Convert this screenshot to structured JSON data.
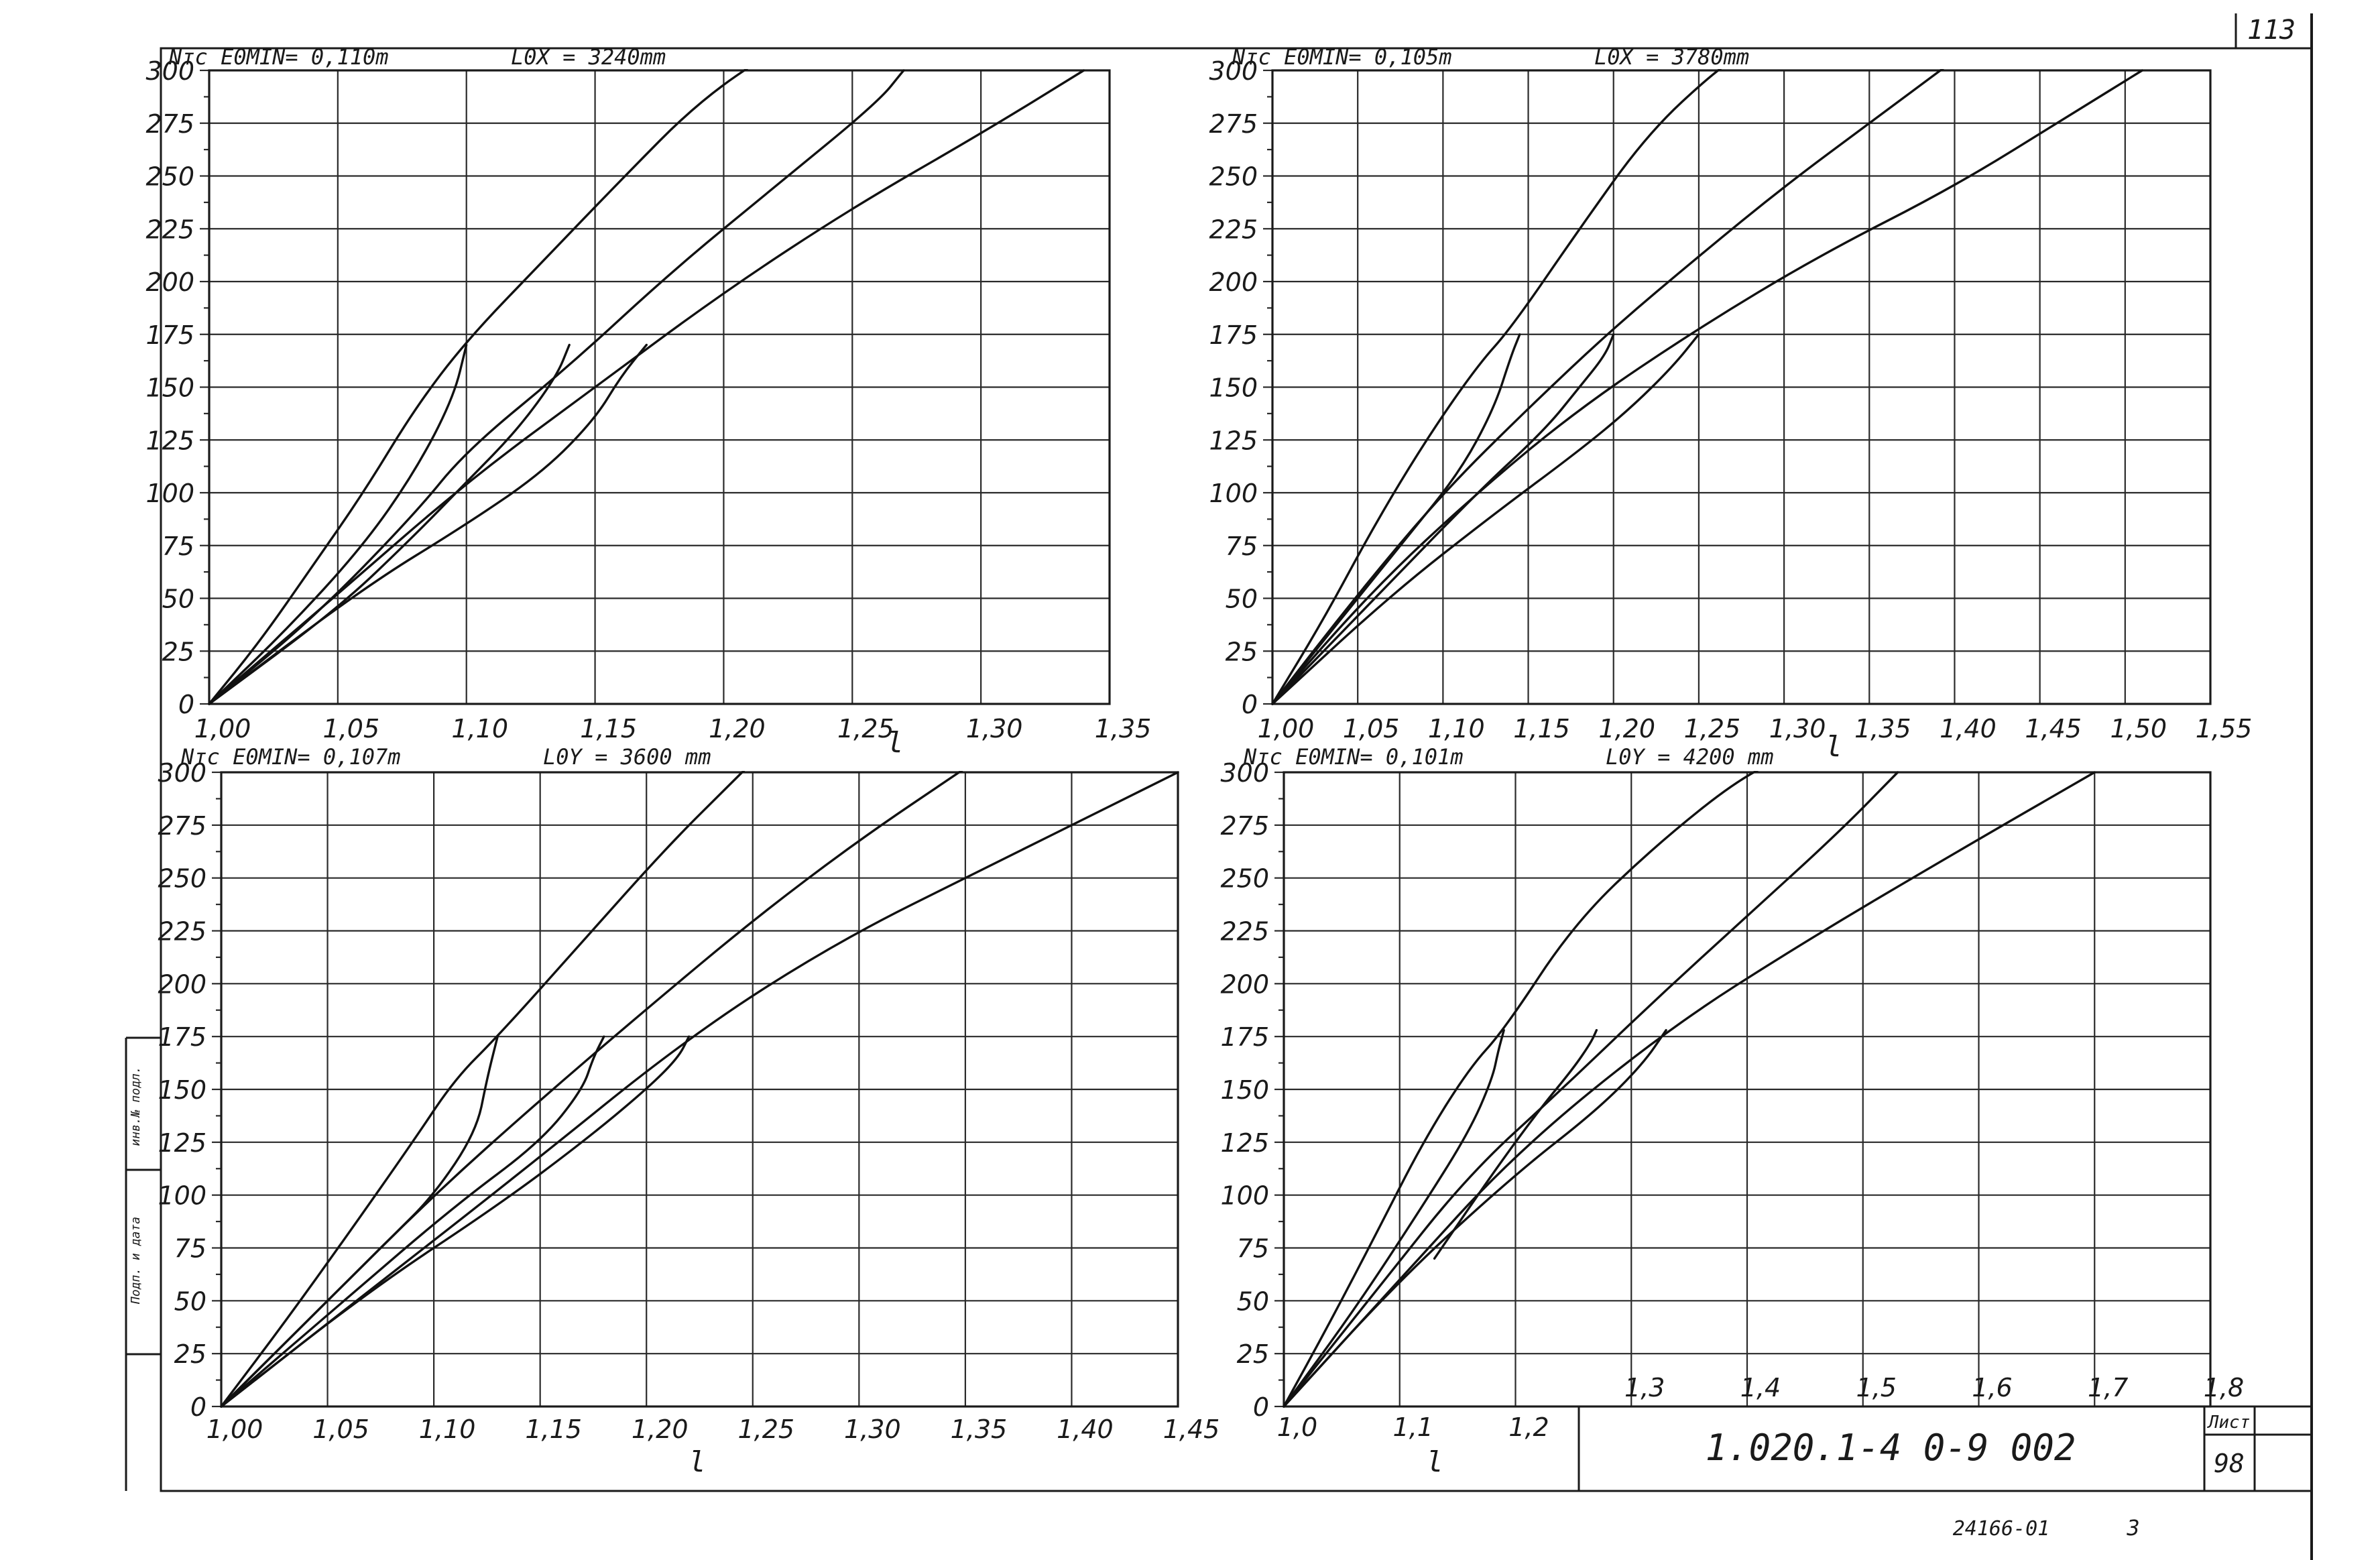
{
  "sheet": {
    "page_number": "113",
    "code": "1.020.1-4  0-9 002",
    "sheet_label": "Лист",
    "sheet_number": "98",
    "footer_code": "24166-01",
    "footer_num": "3",
    "side_label_top": "инв.№ подл.",
    "side_label_bottom": "Подп. и дата"
  },
  "chart_data": [
    {
      "type": "line",
      "header_left": "Nтс  E0MIN= 0,110m",
      "header_right": "L0X = 3240mm",
      "xlabel": "l",
      "x_ticks": [
        "1,00",
        "1,05",
        "1,10",
        "1,15",
        "1,20",
        "1,25",
        "1,30",
        "1,35"
      ],
      "y_ticks": [
        "0",
        "25",
        "50",
        "75",
        "100",
        "125",
        "150",
        "175",
        "200",
        "225",
        "250",
        "275",
        "300"
      ],
      "xlim": [
        1.0,
        1.35
      ],
      "ylim": [
        0,
        300
      ],
      "series": [
        {
          "x": [
            1.0,
            1.02,
            1.04,
            1.06,
            1.08,
            1.1,
            1.13,
            1.16,
            1.19,
            1.22
          ],
          "y": [
            0,
            30,
            65,
            100,
            140,
            172,
            210,
            248,
            285,
            310
          ]
        },
        {
          "x": [
            1.0,
            1.04,
            1.08,
            1.1,
            1.14,
            1.18,
            1.22,
            1.26,
            1.27
          ],
          "y": [
            0,
            40,
            90,
            120,
            160,
            205,
            245,
            285,
            300
          ]
        },
        {
          "x": [
            1.0,
            1.05,
            1.1,
            1.15,
            1.2,
            1.25,
            1.3,
            1.34
          ],
          "y": [
            0,
            52,
            105,
            150,
            195,
            235,
            270,
            300
          ]
        },
        {
          "x": [
            1.0,
            1.03,
            1.06,
            1.08,
            1.095,
            1.1
          ],
          "y": [
            0,
            35,
            75,
            110,
            145,
            170
          ]
        },
        {
          "x": [
            1.0,
            1.05,
            1.08,
            1.1,
            1.12,
            1.135,
            1.14
          ],
          "y": [
            0,
            45,
            80,
            105,
            130,
            155,
            170
          ]
        },
        {
          "x": [
            1.0,
            1.06,
            1.1,
            1.13,
            1.15,
            1.16,
            1.17
          ],
          "y": [
            0,
            55,
            85,
            110,
            135,
            155,
            170
          ]
        }
      ]
    },
    {
      "type": "line",
      "header_left": "Nтс  E0MIN= 0,105m",
      "header_right": "L0X = 3780mm",
      "xlabel": "l",
      "x_ticks": [
        "1,00",
        "1,05",
        "1,10",
        "1,15",
        "1,20",
        "1,25",
        "1,30",
        "1,35",
        "1,40",
        "1,45",
        "1,50",
        "1,55"
      ],
      "y_ticks": [
        "0",
        "25",
        "50",
        "75",
        "100",
        "125",
        "150",
        "175",
        "200",
        "225",
        "250",
        "275",
        "300"
      ],
      "xlim": [
        1.0,
        1.55
      ],
      "ylim": [
        0,
        300
      ],
      "series": [
        {
          "x": [
            1.0,
            1.03,
            1.06,
            1.09,
            1.12,
            1.14,
            1.18,
            1.22,
            1.26,
            1.28
          ],
          "y": [
            0,
            40,
            85,
            125,
            160,
            178,
            225,
            270,
            300,
            310
          ]
        },
        {
          "x": [
            1.0,
            1.05,
            1.1,
            1.15,
            1.2,
            1.25,
            1.3,
            1.35,
            1.4
          ],
          "y": [
            0,
            52,
            100,
            140,
            178,
            212,
            245,
            275,
            305
          ]
        },
        {
          "x": [
            1.0,
            1.06,
            1.12,
            1.18,
            1.25,
            1.32,
            1.4,
            1.47,
            1.51
          ],
          "y": [
            0,
            55,
            100,
            140,
            178,
            212,
            245,
            280,
            300
          ]
        },
        {
          "x": [
            1.0,
            1.04,
            1.08,
            1.11,
            1.13,
            1.14,
            1.145
          ],
          "y": [
            0,
            40,
            80,
            110,
            140,
            165,
            175
          ]
        },
        {
          "x": [
            1.0,
            1.06,
            1.12,
            1.16,
            1.18,
            1.195,
            1.2
          ],
          "y": [
            0,
            50,
            100,
            130,
            150,
            165,
            175
          ]
        },
        {
          "x": [
            1.0,
            1.07,
            1.13,
            1.18,
            1.21,
            1.235,
            1.25
          ],
          "y": [
            0,
            52,
            90,
            120,
            140,
            160,
            175
          ]
        }
      ]
    },
    {
      "type": "line",
      "header_left": "Nтс  E0MIN= 0,107m",
      "header_right": "L0Y = 3600 mm",
      "xlabel": "l",
      "x_ticks": [
        "1,00",
        "1,05",
        "1,10",
        "1,15",
        "1,20",
        "1,25",
        "1,30",
        "1,35",
        "1,40",
        "1,45"
      ],
      "y_ticks": [
        "0",
        "25",
        "50",
        "75",
        "100",
        "125",
        "150",
        "175",
        "200",
        "225",
        "250",
        "275",
        "300"
      ],
      "xlim": [
        1.0,
        1.45
      ],
      "ylim": [
        0,
        300
      ],
      "series": [
        {
          "x": [
            1.0,
            1.03,
            1.06,
            1.09,
            1.11,
            1.13,
            1.17,
            1.21,
            1.24,
            1.25
          ],
          "y": [
            0,
            40,
            82,
            125,
            155,
            175,
            220,
            265,
            295,
            305
          ]
        },
        {
          "x": [
            1.0,
            1.05,
            1.1,
            1.15,
            1.2,
            1.25,
            1.3,
            1.35
          ],
          "y": [
            0,
            50,
            100,
            145,
            188,
            230,
            268,
            302
          ]
        },
        {
          "x": [
            1.0,
            1.07,
            1.14,
            1.22,
            1.29,
            1.36,
            1.42,
            1.45
          ],
          "y": [
            0,
            55,
            110,
            175,
            220,
            255,
            285,
            300
          ]
        },
        {
          "x": [
            1.0,
            1.04,
            1.08,
            1.1,
            1.12,
            1.125,
            1.13
          ],
          "y": [
            0,
            40,
            80,
            100,
            130,
            155,
            175
          ]
        },
        {
          "x": [
            1.0,
            1.06,
            1.11,
            1.15,
            1.17,
            1.175,
            1.18
          ],
          "y": [
            0,
            52,
            95,
            125,
            150,
            165,
            175
          ]
        },
        {
          "x": [
            1.0,
            1.07,
            1.13,
            1.17,
            1.2,
            1.215,
            1.22
          ],
          "y": [
            0,
            55,
            95,
            125,
            150,
            165,
            175
          ]
        }
      ]
    },
    {
      "type": "line",
      "header_left": "Nтс  E0MIN= 0,101m",
      "header_right": "L0Y = 4200 mm",
      "xlabel": "l",
      "x_ticks": [
        "1,0",
        "1,1",
        "1,2",
        "1,3",
        "1,4",
        "1,5",
        "1,6",
        "1,7",
        "1,8"
      ],
      "y_ticks": [
        "0",
        "25",
        "50",
        "75",
        "100",
        "125",
        "150",
        "175",
        "200",
        "225",
        "250",
        "275",
        "300"
      ],
      "xlim": [
        1.0,
        1.8
      ],
      "ylim": [
        0,
        300
      ],
      "series": [
        {
          "x": [
            1.0,
            1.04,
            1.08,
            1.12,
            1.16,
            1.19,
            1.25,
            1.32,
            1.4,
            1.45
          ],
          "y": [
            0,
            40,
            82,
            125,
            160,
            178,
            228,
            265,
            300,
            310
          ]
        },
        {
          "x": [
            1.0,
            1.08,
            1.16,
            1.24,
            1.32,
            1.4,
            1.48,
            1.53
          ],
          "y": [
            0,
            55,
            110,
            150,
            192,
            232,
            272,
            300
          ]
        },
        {
          "x": [
            1.0,
            1.1,
            1.2,
            1.33,
            1.45,
            1.58,
            1.7
          ],
          "y": [
            0,
            60,
            120,
            178,
            220,
            262,
            300
          ]
        },
        {
          "x": [
            1.0,
            1.06,
            1.12,
            1.16,
            1.18,
            1.185,
            1.19
          ],
          "y": [
            0,
            45,
            95,
            130,
            155,
            168,
            178
          ]
        },
        {
          "x": [
            1.13,
            1.18,
            1.22,
            1.25,
            1.265,
            1.27
          ],
          "y": [
            70,
            110,
            140,
            160,
            172,
            178
          ]
        },
        {
          "x": [
            1.0,
            1.1,
            1.2,
            1.27,
            1.31,
            1.33
          ],
          "y": [
            0,
            60,
            110,
            140,
            162,
            178
          ]
        }
      ]
    }
  ]
}
